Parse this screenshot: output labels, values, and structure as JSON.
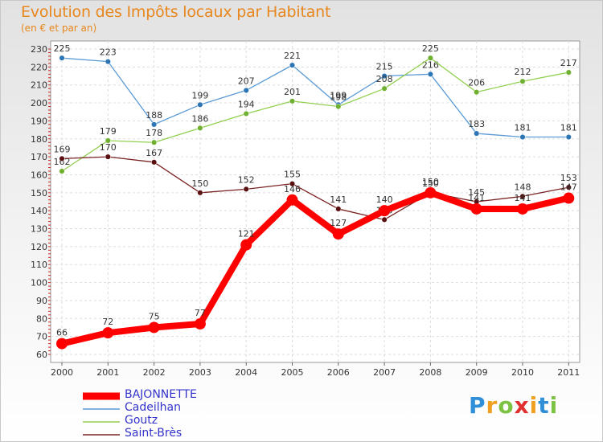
{
  "header": {
    "title": "Evolution des Impôts locaux par Habitant",
    "subtitle": "(en € et par an)"
  },
  "logo": {
    "letters": [
      "P",
      "r",
      "o",
      "x",
      "i",
      "t",
      "i"
    ],
    "colors": [
      "#2f8fd8",
      "#f0a020",
      "#7cc243",
      "#e03030",
      "#f0a020",
      "#2f8fd8",
      "#7cc243"
    ]
  },
  "chart_data": {
    "type": "line",
    "categories": [
      "2000",
      "2001",
      "2002",
      "2003",
      "2004",
      "2005",
      "2006",
      "2007",
      "2008",
      "2009",
      "2010",
      "2011"
    ],
    "ylim": [
      60,
      230
    ],
    "yticks": [
      60,
      70,
      80,
      90,
      100,
      110,
      120,
      130,
      140,
      150,
      160,
      170,
      180,
      190,
      200,
      210,
      220,
      230
    ],
    "grid": true,
    "series": [
      {
        "name": "Cadeilhan",
        "color": "#5b9bd5",
        "point_color": "#2e75b6",
        "values": [
          225,
          223,
          188,
          199,
          207,
          221,
          199,
          215,
          216,
          183,
          181,
          181
        ],
        "labels": [
          "225",
          "223",
          "188",
          "199",
          "207",
          "221",
          "199",
          "215",
          "216",
          "183",
          "181",
          "181"
        ]
      },
      {
        "name": "Goutz",
        "color": "#92d050",
        "point_color": "#70b030",
        "values": [
          162,
          179,
          178,
          186,
          194,
          201,
          198,
          208,
          225,
          206,
          212,
          217
        ],
        "labels": [
          "162",
          "179",
          "178",
          "186",
          "194",
          "201",
          "198",
          "208",
          "225",
          "206",
          "212",
          "217"
        ]
      },
      {
        "name": "Saint-Brès",
        "color": "#7b2323",
        "point_color": "#5a1010",
        "values": [
          169,
          170,
          167,
          150,
          152,
          155,
          141,
          135,
          150,
          145,
          148,
          153
        ],
        "labels": [
          "169",
          "170",
          "167",
          "150",
          "152",
          "155",
          "141",
          "135",
          "150",
          "145",
          "148",
          "153"
        ]
      },
      {
        "name": "BAJONNETTE",
        "color": "#ff0000",
        "point_color": "#ff0000",
        "values": [
          66,
          72,
          75,
          77,
          121,
          146,
          127,
          140,
          150,
          141,
          141,
          147
        ],
        "labels": [
          "66",
          "72",
          "75",
          "77",
          "121",
          "146",
          "127",
          "140",
          "150",
          "141",
          "141",
          "147"
        ]
      }
    ],
    "legend_order": [
      "BAJONNETTE",
      "Cadeilhan",
      "Goutz",
      "Saint-Brès"
    ]
  }
}
